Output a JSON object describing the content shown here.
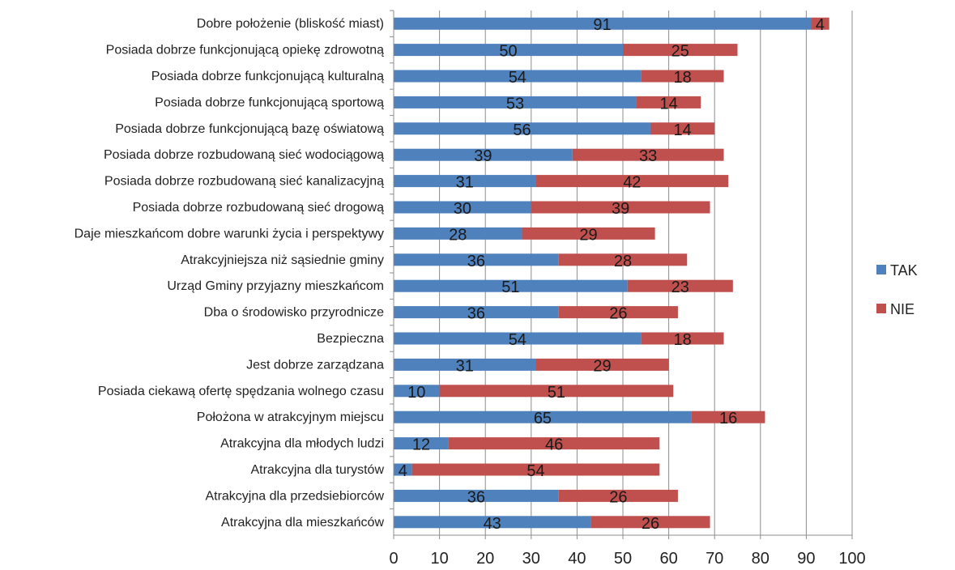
{
  "chart_data": {
    "type": "bar",
    "orientation": "horizontal",
    "stacked": true,
    "categories": [
      "Dobre położenie (bliskość miast)",
      "Posiada dobrze funkcjonującą opiekę zdrowotną",
      "Posiada dobrze funkcjonującą kulturalną",
      "Posiada dobrze funkcjonującą sportową",
      "Posiada dobrze funkcjonującą bazę oświatową",
      "Posiada dobrze rozbudowaną sieć wodociągową",
      "Posiada dobrze rozbudowaną sieć kanalizacyjną",
      "Posiada dobrze rozbudowaną sieć drogową",
      "Daje mieszkańcom dobre warunki życia i perspektywy",
      "Atrakcyjniejsza niż sąsiednie gminy",
      "Urząd Gminy przyjazny mieszkańcom",
      "Dba o środowisko przyrodnicze",
      "Bezpieczna",
      "Jest dobrze zarządzana",
      "Posiada ciekawą ofertę spędzania wolnego czasu",
      "Położona w atrakcyjnym miejscu",
      "Atrakcyjna dla młodych ludzi",
      "Atrakcyjna dla turystów",
      "Atrakcyjna dla przedsiebiorców",
      "Atrakcyjna dla mieszkańców"
    ],
    "series": [
      {
        "name": "TAK",
        "color": "#4F81BD",
        "values": [
          91,
          50,
          54,
          53,
          56,
          39,
          31,
          30,
          28,
          36,
          51,
          36,
          54,
          31,
          10,
          65,
          12,
          4,
          36,
          43
        ]
      },
      {
        "name": "NIE",
        "color": "#C0504D",
        "values": [
          4,
          25,
          18,
          14,
          14,
          33,
          42,
          39,
          29,
          28,
          23,
          26,
          18,
          29,
          51,
          16,
          46,
          54,
          26,
          26
        ]
      }
    ],
    "xlim": [
      0,
      100
    ],
    "xticks": [
      0,
      10,
      20,
      30,
      40,
      50,
      60,
      70,
      80,
      90,
      100
    ],
    "grid": "vertical",
    "gridColor": "#8c8c8c",
    "legend": "right",
    "title": "",
    "xlabel": "",
    "ylabel": ""
  }
}
